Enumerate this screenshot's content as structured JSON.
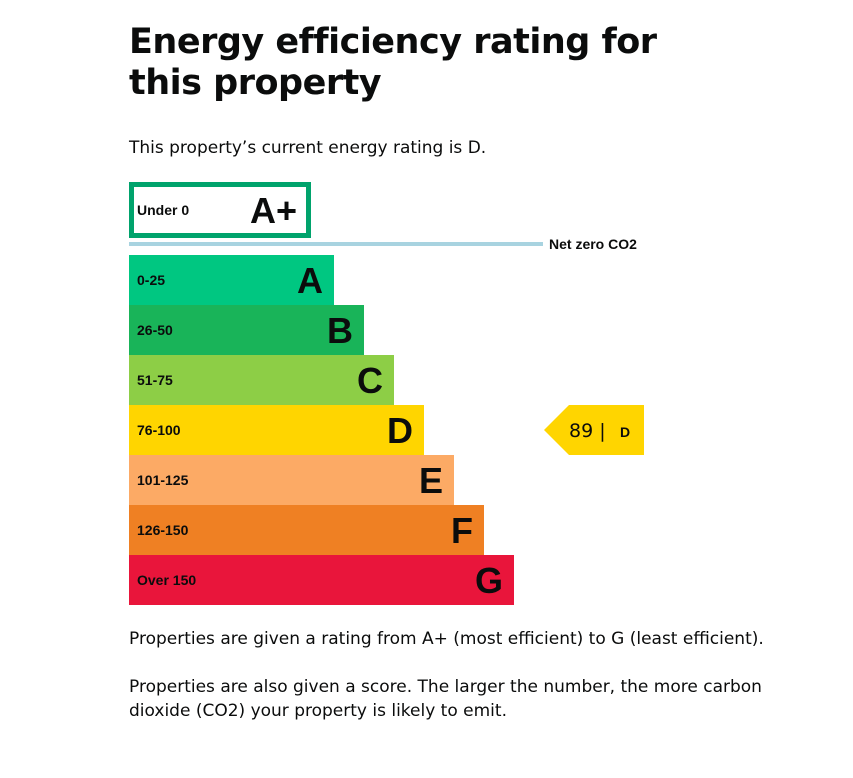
{
  "page": {
    "title": "Energy efficiency rating for this property",
    "current_rating_text": "This property’s current energy rating is D.",
    "explanation_1": "Properties are given a rating from A+ (most efficient) to G (least efficient).",
    "explanation_2": "Properties are also given a score. The larger the number, the more carbon dioxide (CO2) your property is likely to emit."
  },
  "chart_data": {
    "type": "bar",
    "orientation": "horizontal",
    "net_zero_label": "Net zero CO2",
    "bands": [
      {
        "letter": "A+",
        "range": "Under 0",
        "color": "#00a36c",
        "outline": true
      },
      {
        "letter": "A",
        "range": "0-25",
        "color": "#00c781"
      },
      {
        "letter": "B",
        "range": "26-50",
        "color": "#19b459"
      },
      {
        "letter": "C",
        "range": "51-75",
        "color": "#8dce46"
      },
      {
        "letter": "D",
        "range": "76-100",
        "color": "#ffd500"
      },
      {
        "letter": "E",
        "range": "101-125",
        "color": "#fcaa65"
      },
      {
        "letter": "F",
        "range": "126-150",
        "color": "#ef8023"
      },
      {
        "letter": "G",
        "range": "Over 150",
        "color": "#e9153b"
      }
    ],
    "current": {
      "score": 89,
      "score_text": "89 |",
      "band": "D",
      "color": "#ffd500"
    },
    "net_zero_line_color": "#a8d3e0"
  }
}
